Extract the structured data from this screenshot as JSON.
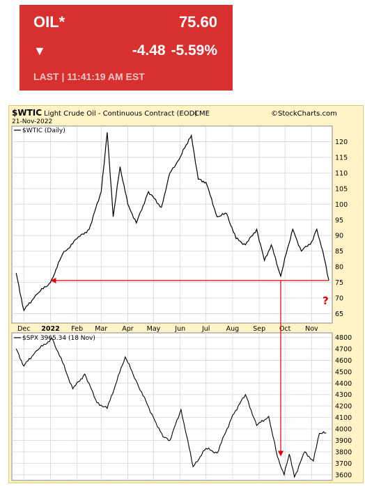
{
  "quote": {
    "symbol": "OIL*",
    "last": "75.60",
    "change": "-4.48",
    "change_pct": "-5.59%",
    "direction_icon": "down-triangle-icon",
    "timestamp": "LAST | 11:41:19 AM EST",
    "colors": {
      "background": "#d8302f",
      "text": "#ffffff"
    }
  },
  "chart_header": {
    "symbol": "$WTIC",
    "title": "Light Crude Oil - Continuous Contract (EOD)",
    "exchange": "CME",
    "date": "21-Nov-2022",
    "brand": "©StockCharts.com"
  },
  "annotations": {
    "question_mark": "?",
    "line_color": "#e00000"
  },
  "x_labels": [
    "Dec",
    "2022",
    "Feb",
    "Mar",
    "Apr",
    "May",
    "Jun",
    "Jul",
    "Aug",
    "Sep",
    "Oct",
    "Nov"
  ],
  "chart_data": [
    {
      "type": "line",
      "legend": "$WTIC (Daily)",
      "ylim": [
        62,
        125
      ],
      "yticks": [
        65,
        70,
        75,
        80,
        85,
        90,
        95,
        100,
        105,
        110,
        115,
        120
      ],
      "grid": true,
      "x": [
        "2021-11-22",
        "2021-12-01",
        "2021-12-15",
        "2022-01-01",
        "2022-01-15",
        "2022-02-01",
        "2022-02-15",
        "2022-03-01",
        "2022-03-08",
        "2022-03-15",
        "2022-03-23",
        "2022-04-01",
        "2022-04-11",
        "2022-04-25",
        "2022-05-10",
        "2022-05-20",
        "2022-06-01",
        "2022-06-08",
        "2022-06-14",
        "2022-06-22",
        "2022-07-01",
        "2022-07-14",
        "2022-07-25",
        "2022-08-05",
        "2022-08-16",
        "2022-08-29",
        "2022-09-07",
        "2022-09-15",
        "2022-09-26",
        "2022-10-04",
        "2022-10-10",
        "2022-10-20",
        "2022-11-01",
        "2022-11-07",
        "2022-11-14",
        "2022-11-21"
      ],
      "values": [
        78,
        66,
        71,
        75,
        84,
        89,
        92,
        104,
        123,
        96,
        112,
        100,
        94,
        104,
        99,
        110,
        115,
        119,
        122,
        108,
        107,
        96,
        97,
        89,
        87,
        92,
        82,
        87,
        77,
        86,
        92,
        85,
        88,
        92,
        85,
        75.6
      ]
    },
    {
      "type": "line",
      "legend": "$SPX 3965.34 (18 Nov)",
      "ylim": [
        3550,
        4840
      ],
      "yticks": [
        3600,
        3700,
        3800,
        3900,
        4000,
        4100,
        4200,
        4300,
        4400,
        4500,
        4600,
        4700,
        4800
      ],
      "grid": true,
      "x": [
        "2021-11-22",
        "2021-12-01",
        "2021-12-15",
        "2022-01-03",
        "2022-01-15",
        "2022-01-27",
        "2022-02-10",
        "2022-02-24",
        "2022-03-08",
        "2022-03-29",
        "2022-04-12",
        "2022-04-29",
        "2022-05-12",
        "2022-05-20",
        "2022-06-02",
        "2022-06-16",
        "2022-07-01",
        "2022-07-14",
        "2022-08-01",
        "2022-08-16",
        "2022-08-29",
        "2022-09-12",
        "2022-09-22",
        "2022-09-30",
        "2022-10-06",
        "2022-10-12",
        "2022-10-24",
        "2022-11-03",
        "2022-11-10",
        "2022-11-18"
      ],
      "values": [
        4700,
        4550,
        4680,
        4790,
        4580,
        4350,
        4480,
        4230,
        4180,
        4630,
        4400,
        4130,
        3930,
        3900,
        4170,
        3670,
        3830,
        3790,
        4120,
        4300,
        4030,
        4110,
        3760,
        3600,
        3780,
        3580,
        3800,
        3720,
        3960,
        3965
      ]
    }
  ]
}
